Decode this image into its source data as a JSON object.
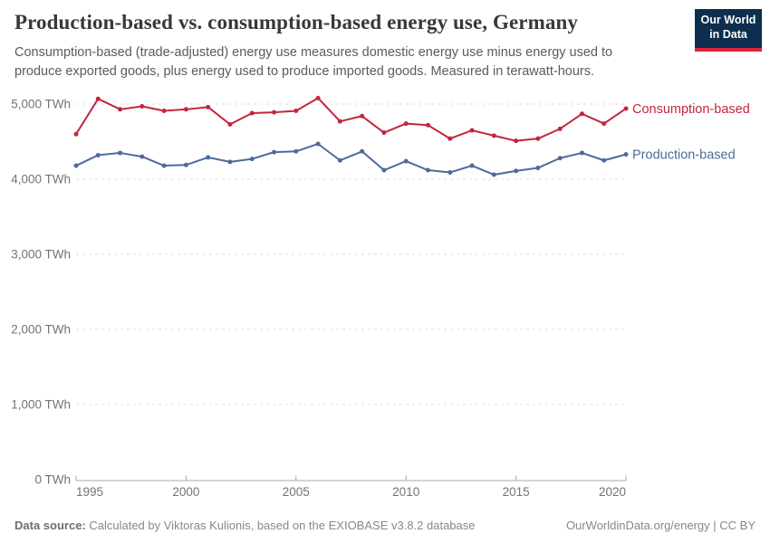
{
  "header": {
    "title": "Production-based vs. consumption-based energy use, Germany",
    "subtitle": "Consumption-based (trade-adjusted) energy use measures domestic energy use minus energy used to produce exported goods, plus energy used to produce imported goods. Measured in terawatt-hours.",
    "logo": {
      "line1": "Our World",
      "line2": "in Data",
      "bg_color": "#0d2e4e",
      "stripe_color": "#e0243c"
    }
  },
  "chart_data": {
    "type": "line",
    "title": "Production-based vs. consumption-based energy use, Germany",
    "xlabel": "",
    "ylabel": "TWh",
    "x": [
      1995,
      1996,
      1997,
      1998,
      1999,
      2000,
      2001,
      2002,
      2003,
      2004,
      2005,
      2006,
      2007,
      2008,
      2009,
      2010,
      2011,
      2012,
      2013,
      2014,
      2015,
      2016,
      2017,
      2018,
      2019,
      2020
    ],
    "series": [
      {
        "name": "Consumption-based",
        "color": "#c2263e",
        "values": [
          4600,
          5070,
          4930,
          4970,
          4910,
          4930,
          4960,
          4730,
          4880,
          4890,
          4910,
          5080,
          4770,
          4840,
          4620,
          4740,
          4720,
          4540,
          4650,
          4580,
          4510,
          4540,
          4670,
          4870,
          4740,
          4940
        ]
      },
      {
        "name": "Production-based",
        "color": "#4c6b9b",
        "values": [
          4180,
          4320,
          4350,
          4300,
          4180,
          4190,
          4290,
          4230,
          4270,
          4360,
          4370,
          4470,
          4250,
          4370,
          4120,
          4240,
          4120,
          4090,
          4180,
          4060,
          4110,
          4150,
          4280,
          4350,
          4250,
          4330
        ]
      }
    ],
    "ylim": [
      0,
      5000
    ],
    "yticks": [
      0,
      1000,
      2000,
      3000,
      4000,
      5000
    ],
    "ytick_labels": [
      "0 TWh",
      "1,000 TWh",
      "2,000 TWh",
      "3,000 TWh",
      "4,000 TWh",
      "5,000 TWh"
    ],
    "xticks": [
      1995,
      2000,
      2005,
      2010,
      2015,
      2020
    ],
    "grid": "horizontal-dashed",
    "legend_position": "right-of-line-end",
    "colors": {
      "gridline": "#dcdcdc",
      "axis_line": "#a8a8a8",
      "tick_text": "#737373"
    }
  },
  "footer": {
    "source_label": "Data source:",
    "source_text": " Calculated by Viktoras Kulionis, based on the EXIOBASE v3.8.2 database",
    "credit": "OurWorldinData.org/energy | CC BY"
  }
}
